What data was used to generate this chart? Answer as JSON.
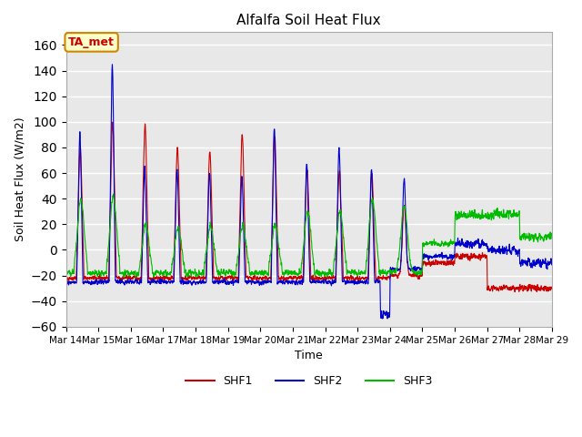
{
  "title": "Alfalfa Soil Heat Flux",
  "xlabel": "Time",
  "ylabel": "Soil Heat Flux (W/m2)",
  "ylim": [
    -60,
    170
  ],
  "yticks": [
    -60,
    -40,
    -20,
    0,
    20,
    40,
    60,
    80,
    100,
    120,
    140,
    160
  ],
  "x_labels": [
    "Mar 14",
    "Mar 15",
    "Mar 16",
    "Mar 17",
    "Mar 18",
    "Mar 19",
    "Mar 20",
    "Mar 21",
    "Mar 22",
    "Mar 23",
    "Mar 24",
    "Mar 25",
    "Mar 26",
    "Mar 27",
    "Mar 28",
    "Mar 29"
  ],
  "shf1_color": "#cc0000",
  "shf2_color": "#0000cc",
  "shf3_color": "#00bb00",
  "annotation_text": "TA_met",
  "annotation_color": "#cc0000",
  "annotation_bg": "#ffffcc",
  "background_color": "#e8e8e8",
  "grid_color": "#ffffff",
  "legend_entries": [
    "SHF1",
    "SHF2",
    "SHF3"
  ],
  "days": 15,
  "n_pts": 3000
}
